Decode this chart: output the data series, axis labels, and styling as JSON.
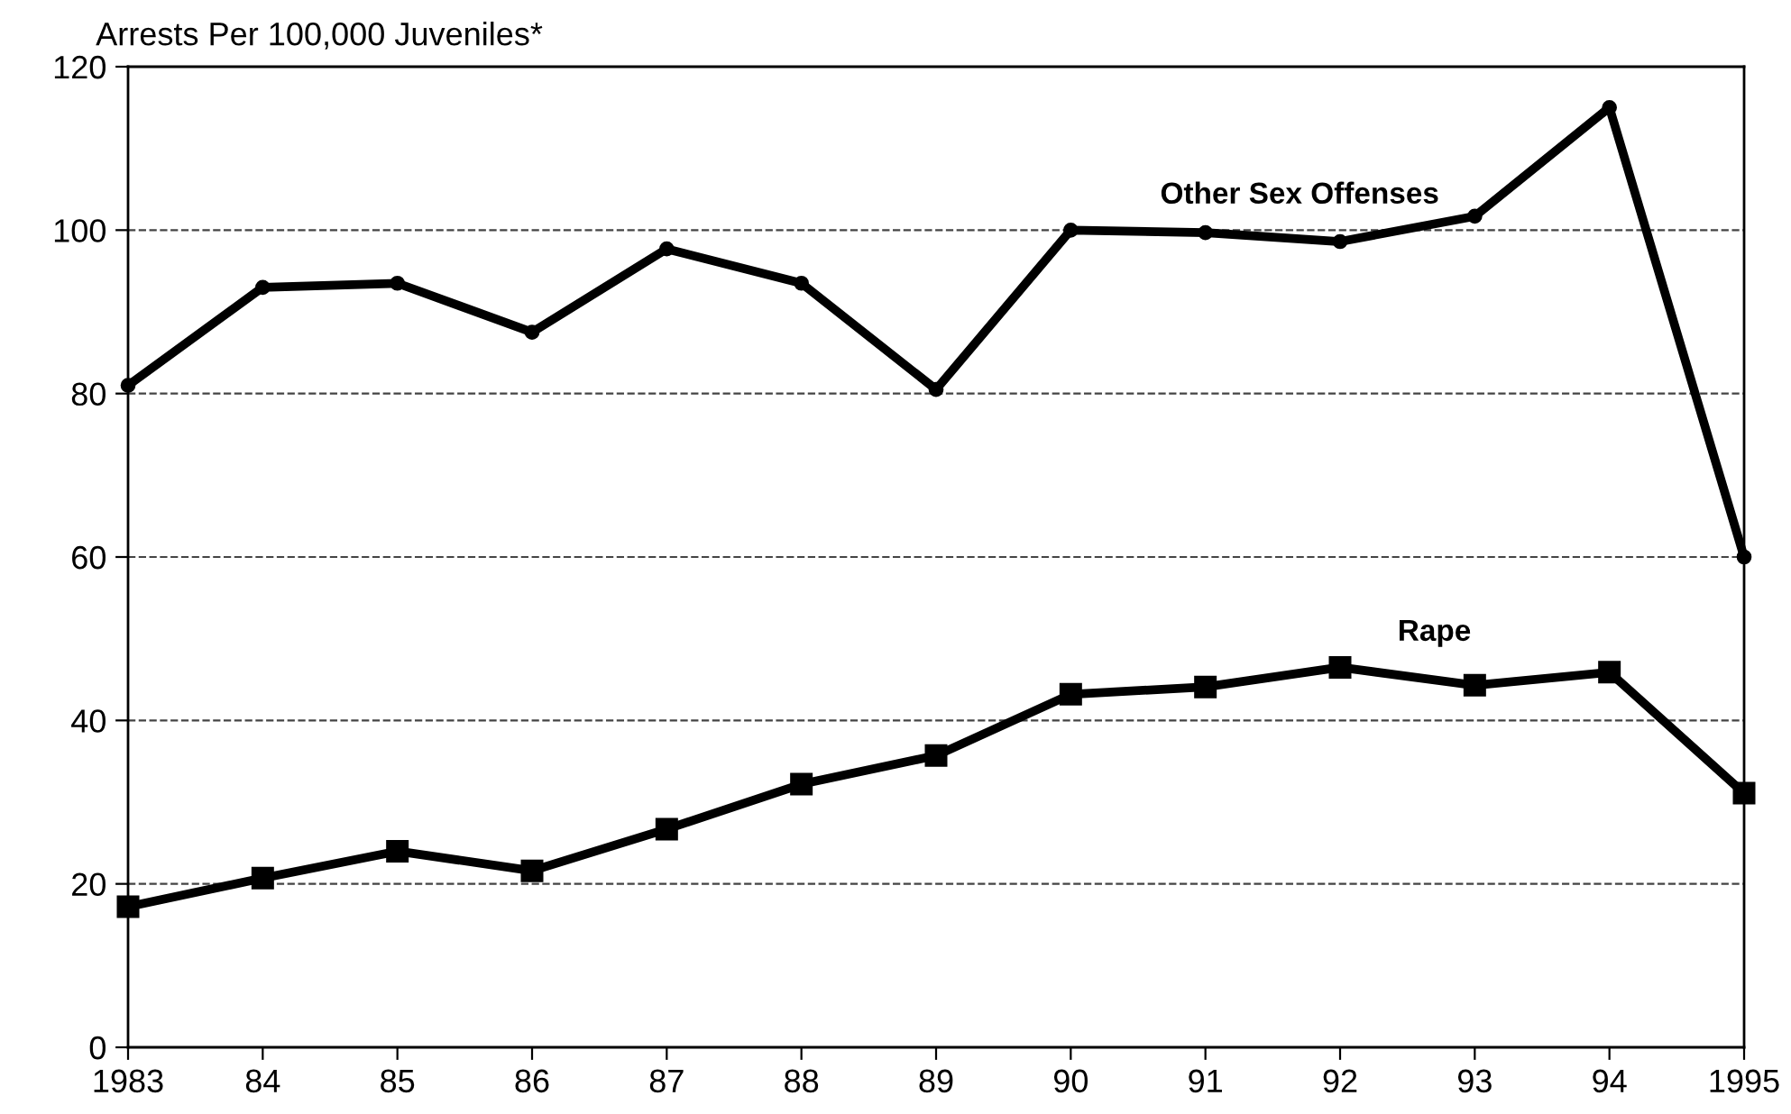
{
  "chart_data": {
    "type": "line",
    "ylabel": "Arrests Per 100,000 Juveniles*",
    "categories": [
      "1983",
      "84",
      "85",
      "86",
      "87",
      "88",
      "89",
      "90",
      "91",
      "92",
      "93",
      "94",
      "1995"
    ],
    "series": [
      {
        "name": "Other Sex Offenses",
        "color": "#000000",
        "marker": "circle",
        "values": [
          81,
          93,
          93.5,
          87.5,
          97.7,
          93.5,
          80.5,
          100,
          99.7,
          98.6,
          101.7,
          115,
          60
        ]
      },
      {
        "name": "Rape",
        "color": "#000000",
        "marker": "square",
        "values": [
          17.2,
          20.7,
          24,
          21.6,
          26.7,
          32.2,
          35.7,
          43.2,
          44.1,
          46.5,
          44.3,
          45.9,
          31.1
        ]
      }
    ],
    "ylim": [
      0,
      120
    ],
    "yticks": [
      0,
      20,
      40,
      60,
      80,
      100,
      120
    ],
    "grid": "y",
    "line_style": "solid"
  }
}
